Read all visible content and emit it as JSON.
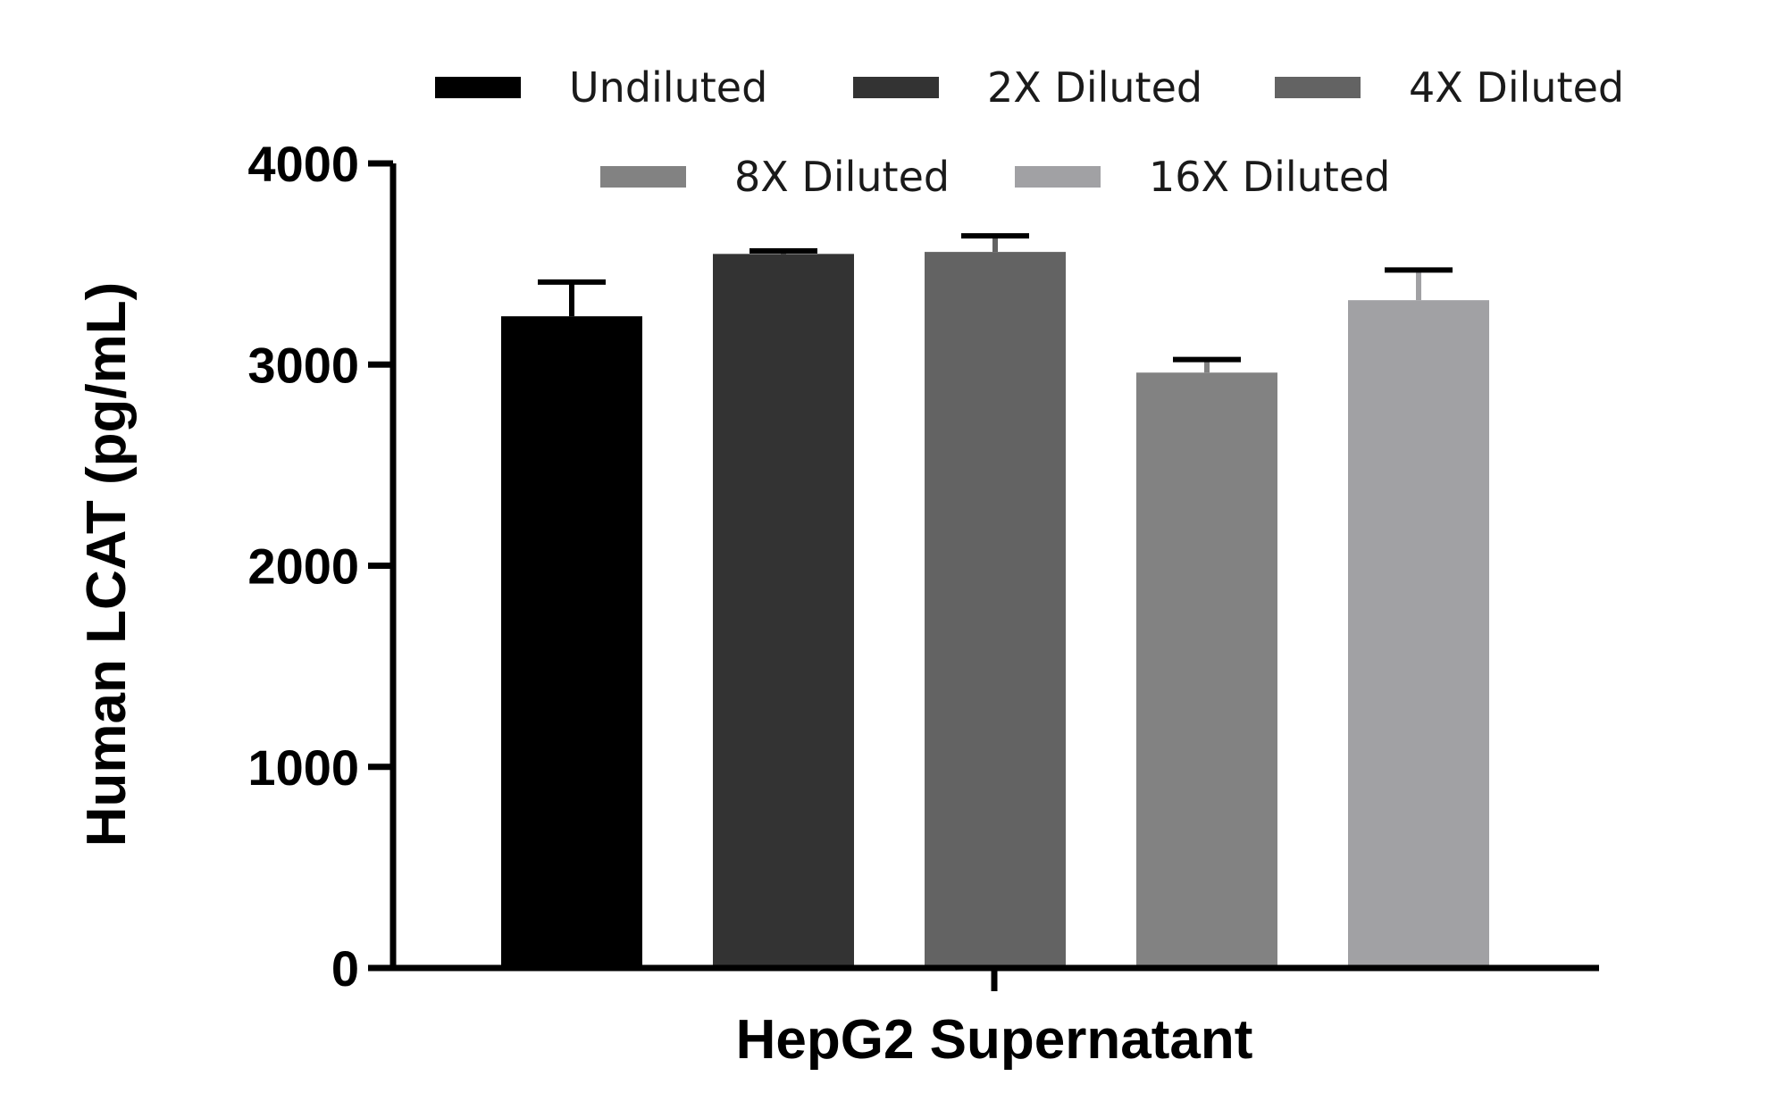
{
  "chart_data": {
    "type": "bar",
    "categories": [
      "HepG2 Supernatant"
    ],
    "xlabel": "HepG2 Supernatant",
    "ylabel": "Human LCAT (pg/mL)",
    "ylim": [
      0,
      4000
    ],
    "yticks": [
      "0",
      "1000",
      "2000",
      "3000",
      "4000"
    ],
    "grid": false,
    "legend_position": "top",
    "series": [
      {
        "name": "Undiluted",
        "values": [
          3240
        ],
        "error": [
          170
        ],
        "color": "#000000"
      },
      {
        "name": "2X Diluted",
        "values": [
          3550
        ],
        "error": [
          15
        ],
        "color": "#333333"
      },
      {
        "name": "4X Diluted",
        "values": [
          3560
        ],
        "error": [
          80
        ],
        "color": "#636363"
      },
      {
        "name": "8X Diluted",
        "values": [
          2960
        ],
        "error": [
          65
        ],
        "color": "#828282"
      },
      {
        "name": "16X Diluted",
        "values": [
          3320
        ],
        "error": [
          150
        ],
        "color": "#a1a1a4"
      }
    ]
  }
}
